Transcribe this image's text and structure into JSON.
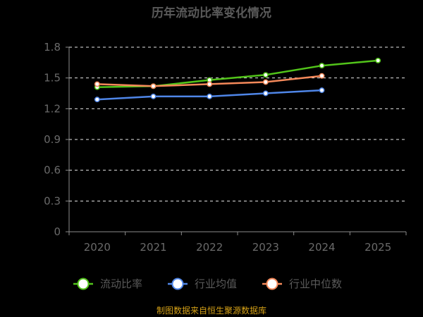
{
  "chart_data": {
    "type": "line",
    "title": "历年流动比率变化情况",
    "categories": [
      "2020",
      "2021",
      "2022",
      "2023",
      "2024",
      "2025"
    ],
    "y_ticks": [
      "0",
      "0.3",
      "0.6",
      "0.9",
      "1.2",
      "1.5",
      "1.8"
    ],
    "ylim": [
      0,
      1.8
    ],
    "grid": true,
    "legend_position": "bottom",
    "series": [
      {
        "name": "流动比率",
        "color": "#52c41a",
        "values": [
          1.41,
          1.42,
          1.48,
          1.53,
          1.62,
          1.67
        ]
      },
      {
        "name": "行业均值",
        "color": "#4f86e8",
        "values": [
          1.29,
          1.32,
          1.32,
          1.35,
          1.38,
          null
        ]
      },
      {
        "name": "行业中位数",
        "color": "#f5895a",
        "values": [
          1.44,
          1.42,
          1.44,
          1.46,
          1.52,
          null
        ]
      }
    ],
    "source": "制图数据来自恒生聚源数据库"
  }
}
